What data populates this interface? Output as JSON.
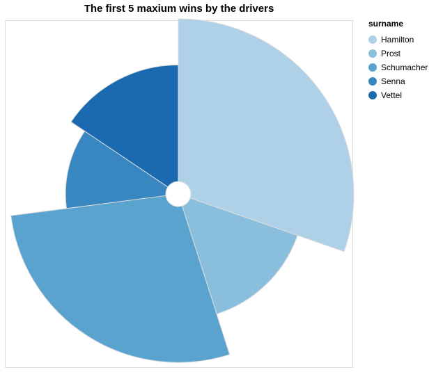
{
  "chart_data": {
    "type": "pie",
    "subtype": "radial",
    "title": "The first 5 maxium wins by the drivers",
    "legend_title": "surname",
    "legend_position": "right",
    "categories": [
      "Hamilton",
      "Prost",
      "Schumacher",
      "Senna",
      "Vettel"
    ],
    "values": [
      37,
      18,
      34,
      14,
      19
    ],
    "colors": [
      "#afd1e7",
      "#89bedc",
      "#5ba3cf",
      "#3987c0",
      "#1b69af"
    ],
    "stroke_color": "#dddddd"
  }
}
